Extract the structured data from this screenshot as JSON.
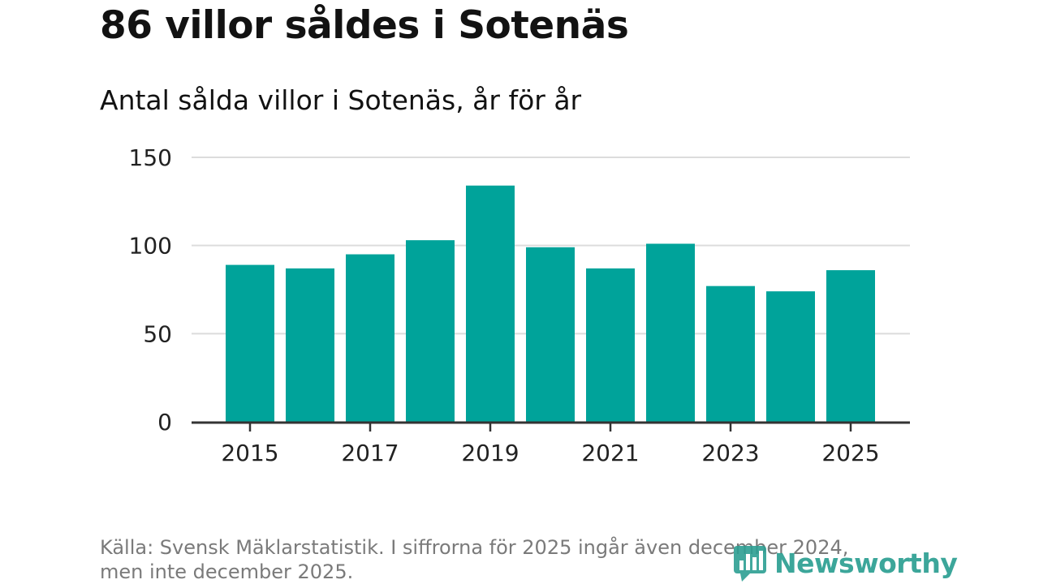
{
  "header": {
    "title": "86 villor såldes i Sotenäs",
    "subtitle": "Antal sålda villor i Sotenäs, år för år"
  },
  "footer": {
    "source_line1": "Källa: Svensk Mäklarstatistik. I siffrorna för 2025 ingår även december 2024,",
    "source_line2": "men inte december 2025."
  },
  "brand": {
    "name": "Newsworthy",
    "color": "#2c9f92"
  },
  "chart_data": {
    "type": "bar",
    "title": "Antal sålda villor i Sotenäs, år för år",
    "categories": [
      "2015",
      "2016",
      "2017",
      "2018",
      "2019",
      "2020",
      "2021",
      "2022",
      "2023",
      "2024",
      "2025"
    ],
    "values": [
      89,
      87,
      95,
      103,
      134,
      99,
      87,
      101,
      77,
      74,
      86
    ],
    "x_tick_labels": [
      "2015",
      "2017",
      "2019",
      "2021",
      "2023",
      "2025"
    ],
    "y_ticks": [
      0,
      50,
      100,
      150
    ],
    "ylim": [
      0,
      150
    ],
    "grid": true,
    "bar_color": "#00a39a",
    "xlabel": "",
    "ylabel": ""
  }
}
